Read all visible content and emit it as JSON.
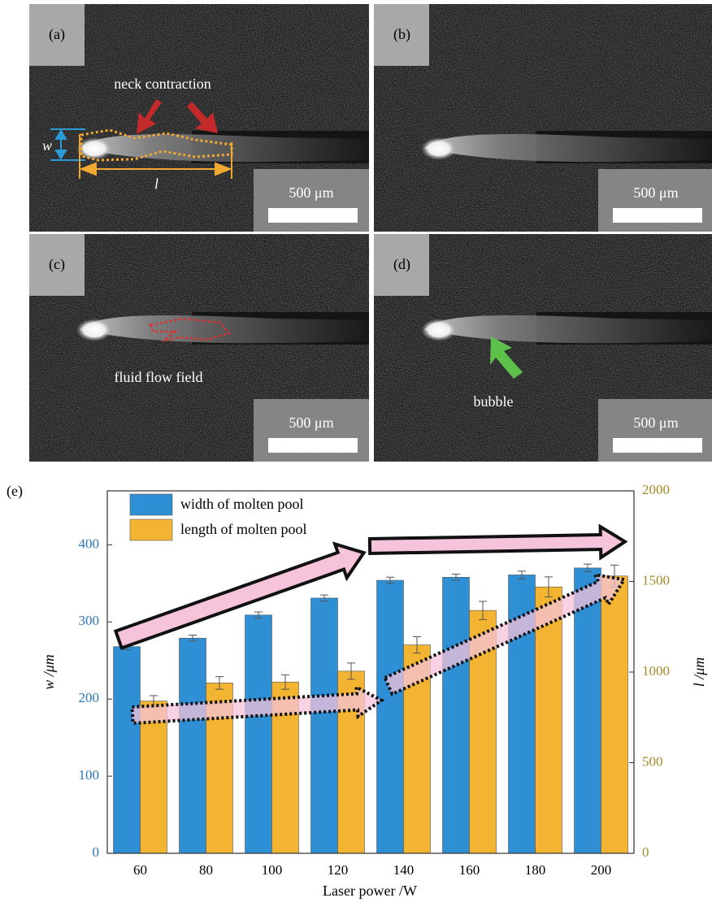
{
  "images": [
    {
      "label": "(a)",
      "scale": "500 μm",
      "annotations": [
        "neck contraction",
        "w",
        "l"
      ]
    },
    {
      "label": "(b)",
      "scale": "500 μm",
      "annotations": []
    },
    {
      "label": "(c)",
      "scale": "500 μm",
      "annotations": [
        "fluid flow field"
      ]
    },
    {
      "label": "(d)",
      "scale": "500 μm",
      "annotations": [
        "bubble"
      ]
    }
  ],
  "chart_data": {
    "type": "bar",
    "panel_label": "(e)",
    "x_label": "Laser power /W",
    "y_label": "w /μm",
    "y2_label": "l /μm",
    "categories": [
      "60",
      "80",
      "100",
      "120",
      "140",
      "160",
      "180",
      "200"
    ],
    "series": [
      {
        "name": "width of molten pool",
        "color": "#2f8fd5",
        "values": [
          268,
          279,
          309,
          331,
          354,
          358,
          361,
          370
        ],
        "errors": [
          4,
          4,
          4,
          4,
          4,
          4,
          5,
          5
        ]
      },
      {
        "name": "length of molten pool",
        "color": "#f2b431",
        "axis": "y2",
        "values": [
          840,
          940,
          945,
          1005,
          1150,
          1340,
          1470,
          1530
        ],
        "errors": [
          30,
          35,
          40,
          45,
          45,
          50,
          55,
          60
        ]
      }
    ],
    "ylim": [
      0,
      470
    ],
    "yticks": [
      0,
      100,
      200,
      300,
      400
    ],
    "y2lim": [
      0,
      2000
    ],
    "y2ticks": [
      0,
      500,
      1000,
      1500,
      2000
    ],
    "legend": "upper left"
  }
}
